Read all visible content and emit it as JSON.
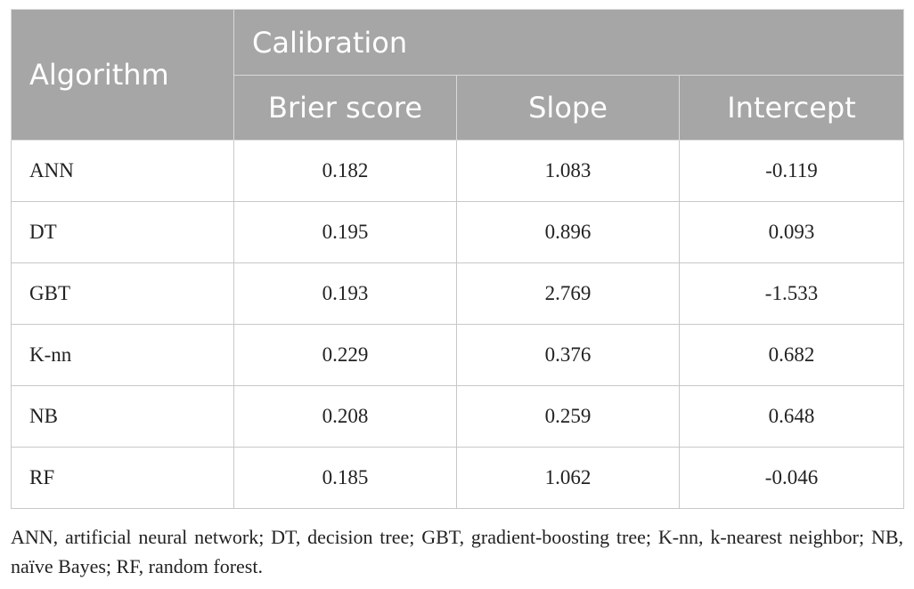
{
  "table": {
    "header": {
      "algorithm": "Algorithm",
      "group": "Calibration",
      "columns": [
        "Brier score",
        "Slope",
        "Intercept"
      ]
    },
    "rows": [
      {
        "name": "ANN",
        "brier": "0.182",
        "slope": "1.083",
        "intercept": "-0.119"
      },
      {
        "name": "DT",
        "brier": "0.195",
        "slope": "0.896",
        "intercept": "0.093"
      },
      {
        "name": "GBT",
        "brier": "0.193",
        "slope": "2.769",
        "intercept": "-1.533"
      },
      {
        "name": "K-nn",
        "brier": "0.229",
        "slope": "0.376",
        "intercept": "0.682"
      },
      {
        "name": "NB",
        "brier": "0.208",
        "slope": "0.259",
        "intercept": "0.648"
      },
      {
        "name": "RF",
        "brier": "0.185",
        "slope": "1.062",
        "intercept": "-0.046"
      }
    ]
  },
  "footnote": "ANN, artificial neural network; DT, decision tree; GBT, gradient-boosting tree; K-nn, k-nearest neighbor; NB, naïve Bayes; RF, random forest.",
  "colors": {
    "header_bg": "#a6a6a6",
    "header_text": "#ffffff",
    "grid": "#c8c8c8"
  }
}
